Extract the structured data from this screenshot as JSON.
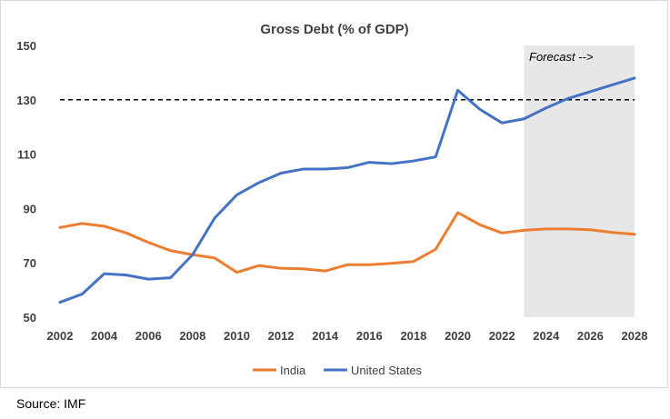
{
  "source": "Source: IMF",
  "chart_data": {
    "type": "line",
    "title": "Gross Debt (% of GDP)",
    "xlabel": "",
    "ylabel": "",
    "x": [
      2002,
      2003,
      2004,
      2005,
      2006,
      2007,
      2008,
      2009,
      2010,
      2011,
      2012,
      2013,
      2014,
      2015,
      2016,
      2017,
      2018,
      2019,
      2020,
      2021,
      2022,
      2023,
      2024,
      2025,
      2026,
      2027,
      2028
    ],
    "x_ticks": [
      "2002",
      "2004",
      "2006",
      "2008",
      "2010",
      "2012",
      "2014",
      "2016",
      "2018",
      "2020",
      "2022",
      "2024",
      "2026",
      "2028"
    ],
    "y_ticks": [
      "50",
      "70",
      "90",
      "110",
      "130",
      "150"
    ],
    "ylim": [
      50,
      150
    ],
    "xlim": [
      2002,
      2028
    ],
    "grid": false,
    "legend_position": "bottom",
    "reference_line": {
      "y": 130,
      "style": "dashed",
      "color": "#000000"
    },
    "forecast_region": {
      "x_start": 2023,
      "x_end": 2028,
      "label": "Forecast -->",
      "color": "#e7e7e7"
    },
    "series": [
      {
        "name": "India",
        "color": "#ed7d31",
        "values": [
          83,
          84.5,
          83.5,
          81,
          77.5,
          74.5,
          73,
          71.8,
          66.5,
          69,
          68,
          67.8,
          67,
          69.3,
          69.3,
          69.8,
          70.5,
          75,
          88.5,
          84,
          81,
          82,
          82.5,
          82.5,
          82.2,
          81.2,
          80.5
        ]
      },
      {
        "name": "United States",
        "color": "#4472c4",
        "values": [
          55.5,
          58.5,
          66,
          65.5,
          64,
          64.5,
          73,
          86.5,
          95,
          99.5,
          103,
          104.5,
          104.5,
          105,
          107,
          106.5,
          107.5,
          109,
          133.5,
          126.5,
          121.5,
          123,
          127,
          130.5,
          133,
          135.5,
          138
        ]
      }
    ]
  }
}
